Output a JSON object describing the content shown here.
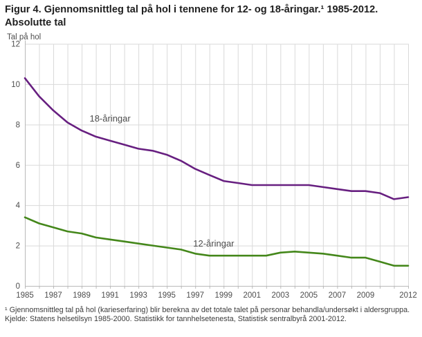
{
  "figure": {
    "title": "Figur 4. Gjennomsnittleg tal på hol i tennene for 12- og 18-åringar.¹ 1985-2012. Absolutte tal",
    "footnote": "¹ Gjennomsnittleg tal på hol (karieserfaring) blir berekna av det totale talet på personar behandla/undersøkt i aldersgruppa.",
    "source": "Kjelde: Statens helsetilsyn 1985-2000. Statistikk for tannhelsetenesta, Statistisk sentralbyrå 2001-2012."
  },
  "chart_data": {
    "type": "line",
    "title": "Figur 4. Gjennomsnittleg tal på hol i tennene for 12- og 18-åringar. 1985-2012. Absolutte tal",
    "ylabel": "Tal på hol",
    "xlabel": "",
    "ylim": [
      0,
      12
    ],
    "y_ticks": [
      0,
      2,
      4,
      6,
      8,
      10,
      12
    ],
    "grid": true,
    "legend_position": "inline-labels",
    "x": [
      1985,
      1986,
      1987,
      1988,
      1989,
      1990,
      1991,
      1992,
      1993,
      1994,
      1995,
      1996,
      1997,
      1998,
      1999,
      2000,
      2001,
      2002,
      2003,
      2004,
      2005,
      2006,
      2007,
      2008,
      2009,
      2010,
      2011,
      2012
    ],
    "x_tick_labels": [
      "1985",
      "1987",
      "1989",
      "1991",
      "1993",
      "1995",
      "1997",
      "1999",
      "2001",
      "2003",
      "2005",
      "2007",
      "2009",
      "2012"
    ],
    "series": [
      {
        "name": "18-åringar",
        "color": "#671f80",
        "values": [
          10.3,
          9.4,
          8.7,
          8.1,
          7.7,
          7.4,
          7.2,
          7.0,
          6.8,
          6.7,
          6.5,
          6.2,
          5.8,
          5.5,
          5.2,
          5.1,
          5.0,
          5.0,
          5.0,
          5.0,
          5.0,
          4.9,
          4.8,
          4.7,
          4.7,
          4.6,
          4.3,
          4.4
        ]
      },
      {
        "name": "12-åringar",
        "color": "#44871a",
        "values": [
          3.4,
          3.1,
          2.9,
          2.7,
          2.6,
          2.4,
          2.3,
          2.2,
          2.1,
          2.0,
          1.9,
          1.8,
          1.6,
          1.5,
          1.5,
          1.5,
          1.5,
          1.5,
          1.65,
          1.7,
          1.65,
          1.6,
          1.5,
          1.4,
          1.4,
          1.2,
          1.0,
          1.0
        ]
      }
    ],
    "annotations": [
      {
        "text": "18-åringar",
        "year": 1991.0,
        "value": 8.15
      },
      {
        "text": "12-åringar",
        "year": 1998.3,
        "value": 1.95
      }
    ]
  },
  "colors": {
    "grid": "#d9d9d9",
    "axis": "#b9b9b9",
    "tick_text": "#4d4d4d",
    "annotation_text": "#4d4d4d"
  }
}
